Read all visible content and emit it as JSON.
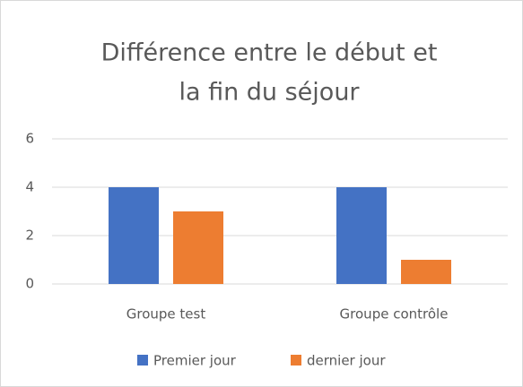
{
  "chart_data": {
    "type": "bar",
    "title": [
      "Différence entre le début et",
      "la fin du séjour"
    ],
    "categories": [
      "Groupe test",
      "Groupe contrôle"
    ],
    "series": [
      {
        "name": "Premier jour",
        "color": "#4472c4",
        "values": [
          4,
          4
        ]
      },
      {
        "name": "dernier jour",
        "color": "#ed7d31",
        "values": [
          3,
          1
        ]
      }
    ],
    "ylim": [
      0,
      6
    ],
    "yticks": [
      0,
      2,
      4,
      6
    ],
    "grid": true,
    "legend": "bottom"
  }
}
